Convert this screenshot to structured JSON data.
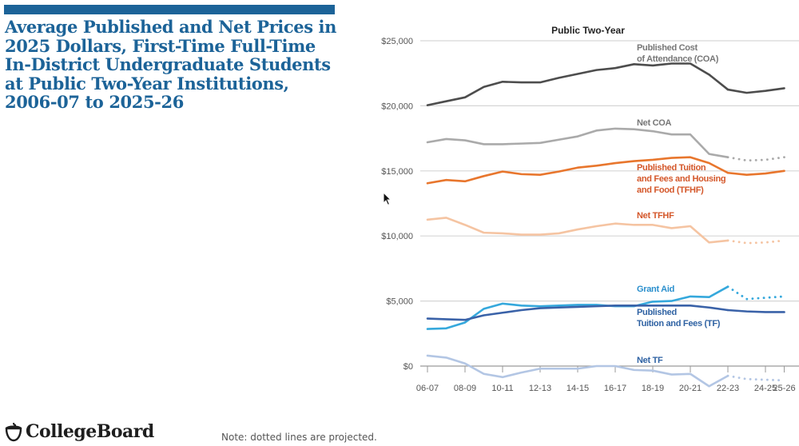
{
  "header": {
    "title": "Average Published and Net Prices in 2025 Dollars, First-Time Full-Time In-District Undergraduate Students at Public Two-Year Institutions, 2006-07 to 2025-26"
  },
  "footer": {
    "logo_text": "CollegeBoard",
    "logo_icon": "acorn-icon",
    "note": "Note: dotted lines are projected."
  },
  "colors": {
    "brand": "#1c6398",
    "coa": "#4d4d4d",
    "net_coa": "#aaaaaa",
    "tfhf": "#e8762d",
    "net_tfhf": "#f5c4a2",
    "grant_aid": "#35a8dc",
    "tf": "#3a62a8",
    "net_tf": "#b3c6e4"
  },
  "chart_data": {
    "type": "line",
    "title": "Public Two-Year",
    "xlabel": "",
    "ylabel": "",
    "ylim": [
      -1500,
      25000
    ],
    "yticks": [
      0,
      5000,
      10000,
      15000,
      20000,
      25000
    ],
    "ytick_labels": [
      "$0",
      "$5,000",
      "$10,000",
      "$15,000",
      "$20,000",
      "$25,000"
    ],
    "grid": true,
    "x": [
      "06-07",
      "07-08",
      "08-09",
      "09-10",
      "10-11",
      "11-12",
      "12-13",
      "13-14",
      "14-15",
      "15-16",
      "16-17",
      "17-18",
      "18-19",
      "19-20",
      "20-21",
      "21-22",
      "22-23",
      "23-24",
      "24-25",
      "25-26"
    ],
    "xtick_labels": [
      "06-07",
      "08-09",
      "10-11",
      "12-13",
      "14-15",
      "16-17",
      "18-19",
      "20-21",
      "22-23",
      "24-25",
      "25-26"
    ],
    "projected_from_index": 16,
    "series": [
      {
        "key": "coa",
        "name": "Published Cost of Attendance (COA)",
        "label_lines": [
          "Published Cost",
          "of Attendance (COA)"
        ],
        "values": [
          20050,
          20350,
          20650,
          21450,
          21850,
          21800,
          21800,
          22150,
          22450,
          22750,
          22900,
          23200,
          23100,
          23250,
          23250,
          22400,
          21250,
          21000,
          21150,
          21350
        ],
        "projected_style": "solid"
      },
      {
        "key": "net_coa",
        "name": "Net COA",
        "label_lines": [
          "Net COA"
        ],
        "values": [
          17200,
          17450,
          17350,
          17050,
          17050,
          17100,
          17150,
          17400,
          17650,
          18100,
          18250,
          18200,
          18050,
          17800,
          17800,
          16300,
          16050,
          15800,
          15850,
          16050
        ],
        "projected_style": "dotted"
      },
      {
        "key": "tfhf",
        "name": "Published Tuition and Fees and Housing and Food (TFHF)",
        "label_lines": [
          "Published Tuition",
          "and Fees and Housing",
          "and Food (TFHF)"
        ],
        "values": [
          14050,
          14300,
          14200,
          14600,
          14950,
          14750,
          14700,
          14950,
          15250,
          15400,
          15600,
          15750,
          15850,
          16000,
          16050,
          15600,
          14850,
          14700,
          14800,
          15000
        ],
        "projected_style": "solid"
      },
      {
        "key": "net_tfhf",
        "name": "Net TFHF",
        "label_lines": [
          "Net TFHF"
        ],
        "values": [
          11250,
          11400,
          10850,
          10250,
          10200,
          10100,
          10100,
          10200,
          10500,
          10750,
          10950,
          10850,
          10850,
          10600,
          10750,
          9500,
          9650,
          9450,
          9500,
          9650
        ],
        "projected_style": "dotted"
      },
      {
        "key": "grant_aid",
        "name": "Grant Aid",
        "label_lines": [
          "Grant Aid"
        ],
        "values": [
          2850,
          2900,
          3350,
          4400,
          4800,
          4650,
          4600,
          4650,
          4700,
          4700,
          4600,
          4600,
          4950,
          5000,
          5350,
          5300,
          6100,
          5150,
          5250,
          5350
        ],
        "projected_style": "dotted"
      },
      {
        "key": "tf",
        "name": "Published Tuition and Fees (TF)",
        "label_lines": [
          "Published",
          "Tuition and Fees (TF)"
        ],
        "values": [
          3650,
          3600,
          3550,
          3900,
          4100,
          4300,
          4450,
          4500,
          4550,
          4600,
          4650,
          4650,
          4650,
          4650,
          4650,
          4500,
          4300,
          4200,
          4150,
          4150
        ],
        "projected_style": "solid"
      },
      {
        "key": "net_tf",
        "name": "Net TF",
        "label_lines": [
          "Net TF"
        ],
        "values": [
          800,
          650,
          200,
          -600,
          -850,
          -500,
          -200,
          -200,
          -200,
          0,
          0,
          -300,
          -350,
          -650,
          -600,
          -1550,
          -750,
          -1000,
          -1050,
          -1100
        ],
        "projected_style": "dotted"
      }
    ]
  }
}
